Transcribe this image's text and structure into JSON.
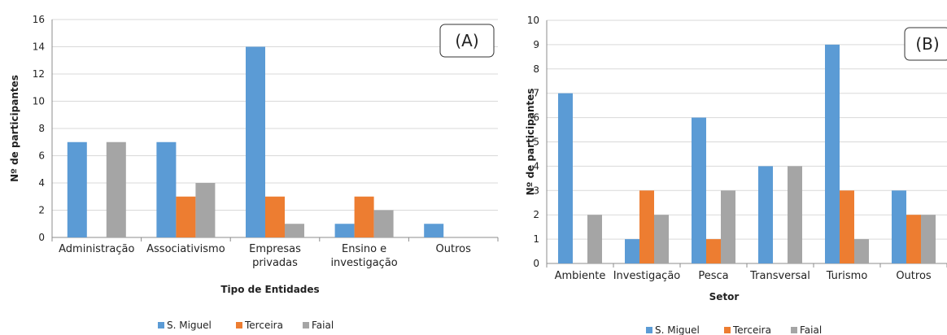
{
  "chart_data": [
    {
      "type": "bar",
      "panel_label": "(A)",
      "xlabel": "Tipo de Entidades",
      "ylabel": "Nº de participantes",
      "ylim": [
        0,
        16
      ],
      "yticks": [
        "0",
        "2",
        "4",
        "6",
        "8",
        "10",
        "12",
        "14",
        "16"
      ],
      "categories": [
        [
          "Administração"
        ],
        [
          "Associativismo"
        ],
        [
          "Empresas",
          "privadas"
        ],
        [
          "Ensino e",
          "investigação"
        ],
        [
          "Outros"
        ]
      ],
      "series": [
        {
          "name": "S. Miguel",
          "color": "#5B9BD5",
          "values": [
            7,
            7,
            14,
            1,
            1
          ]
        },
        {
          "name": "Terceira",
          "color": "#ED7D31",
          "values": [
            0,
            3,
            3,
            3,
            0
          ]
        },
        {
          "name": "Faial",
          "color": "#A5A5A5",
          "values": [
            7,
            4,
            1,
            2,
            0
          ]
        }
      ],
      "grid": true,
      "legend": "bottom"
    },
    {
      "type": "bar",
      "panel_label": "(B)",
      "xlabel": "Setor",
      "ylabel": "Nº de participantes",
      "ylim": [
        0,
        10
      ],
      "yticks": [
        "0",
        "1",
        "2",
        "3",
        "4",
        "5",
        "6",
        "7",
        "8",
        "9",
        "10"
      ],
      "categories": [
        [
          "Ambiente"
        ],
        [
          "Investigação"
        ],
        [
          "Pesca"
        ],
        [
          "Transversal"
        ],
        [
          "Turismo"
        ],
        [
          "Outros"
        ]
      ],
      "series": [
        {
          "name": "S. Miguel",
          "color": "#5B9BD5",
          "values": [
            7,
            1,
            6,
            4,
            9,
            3
          ]
        },
        {
          "name": "Terceira",
          "color": "#ED7D31",
          "values": [
            0,
            3,
            1,
            0,
            3,
            2
          ]
        },
        {
          "name": "Faial",
          "color": "#A5A5A5",
          "values": [
            2,
            2,
            3,
            4,
            1,
            2
          ]
        }
      ],
      "grid": true,
      "legend": "bottom"
    }
  ]
}
